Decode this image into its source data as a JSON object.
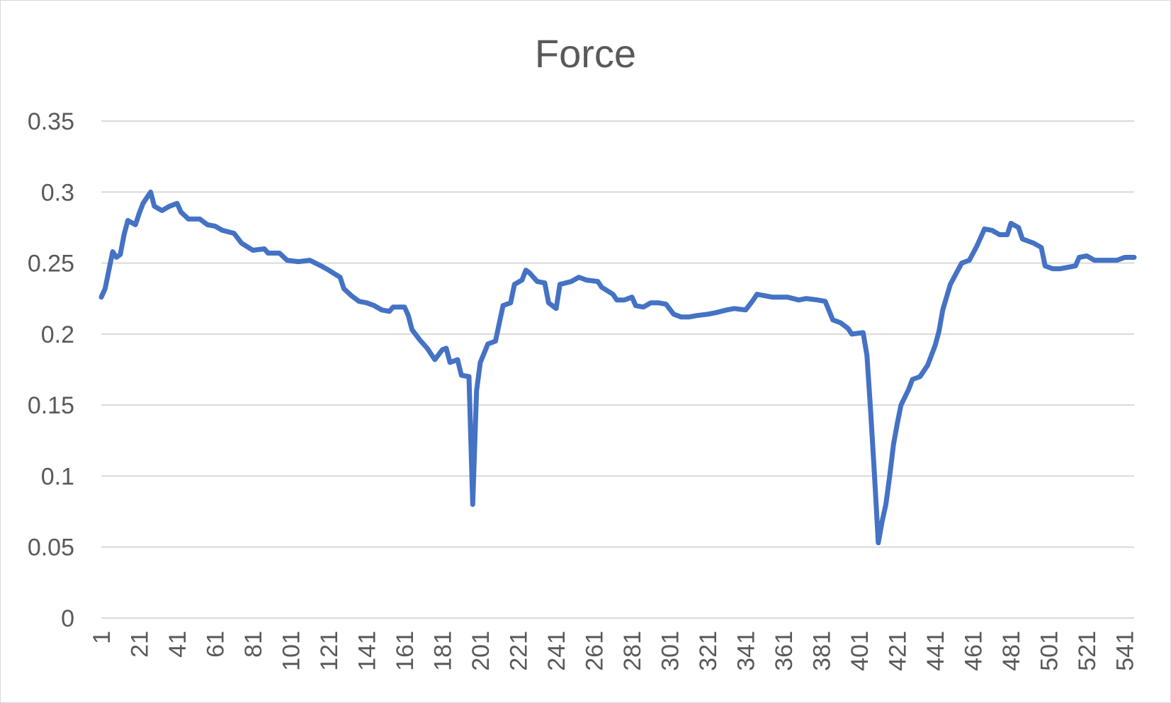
{
  "chart_data": {
    "type": "line",
    "title": "Force",
    "xlabel": "",
    "ylabel": "",
    "ylim": [
      0,
      0.35
    ],
    "yticks": [
      "0",
      "0.05",
      "0.1",
      "0.15",
      "0.2",
      "0.25",
      "0.3",
      "0.35"
    ],
    "xticks": [
      "1",
      "21",
      "41",
      "61",
      "81",
      "101",
      "121",
      "141",
      "161",
      "181",
      "201",
      "221",
      "241",
      "261",
      "281",
      "301",
      "321",
      "341",
      "361",
      "381",
      "401",
      "421",
      "441",
      "461",
      "481",
      "501",
      "521",
      "541"
    ],
    "grid": true,
    "legend": "none",
    "line_color": "#4472C4",
    "series": [
      {
        "points": [
          [
            1,
            0.226
          ],
          [
            3,
            0.232
          ],
          [
            5,
            0.245
          ],
          [
            7,
            0.258
          ],
          [
            9,
            0.254
          ],
          [
            11,
            0.256
          ],
          [
            13,
            0.27
          ],
          [
            15,
            0.28
          ],
          [
            19,
            0.277
          ],
          [
            21,
            0.285
          ],
          [
            23,
            0.292
          ],
          [
            25,
            0.296
          ],
          [
            27,
            0.3
          ],
          [
            29,
            0.29
          ],
          [
            33,
            0.287
          ],
          [
            37,
            0.29
          ],
          [
            41,
            0.292
          ],
          [
            43,
            0.286
          ],
          [
            47,
            0.281
          ],
          [
            53,
            0.281
          ],
          [
            57,
            0.277
          ],
          [
            61,
            0.276
          ],
          [
            65,
            0.273
          ],
          [
            71,
            0.271
          ],
          [
            75,
            0.264
          ],
          [
            81,
            0.259
          ],
          [
            87,
            0.26
          ],
          [
            89,
            0.257
          ],
          [
            95,
            0.257
          ],
          [
            99,
            0.252
          ],
          [
            105,
            0.251
          ],
          [
            111,
            0.252
          ],
          [
            117,
            0.248
          ],
          [
            121,
            0.245
          ],
          [
            127,
            0.24
          ],
          [
            129,
            0.232
          ],
          [
            133,
            0.227
          ],
          [
            137,
            0.223
          ],
          [
            141,
            0.222
          ],
          [
            145,
            0.22
          ],
          [
            149,
            0.217
          ],
          [
            153,
            0.216
          ],
          [
            155,
            0.219
          ],
          [
            161,
            0.219
          ],
          [
            163,
            0.213
          ],
          [
            165,
            0.203
          ],
          [
            169,
            0.196
          ],
          [
            173,
            0.19
          ],
          [
            177,
            0.182
          ],
          [
            181,
            0.189
          ],
          [
            183,
            0.19
          ],
          [
            185,
            0.18
          ],
          [
            189,
            0.182
          ],
          [
            191,
            0.171
          ],
          [
            195,
            0.17
          ],
          [
            197,
            0.08
          ],
          [
            199,
            0.16
          ],
          [
            201,
            0.18
          ],
          [
            205,
            0.193
          ],
          [
            209,
            0.195
          ],
          [
            213,
            0.22
          ],
          [
            217,
            0.222
          ],
          [
            219,
            0.235
          ],
          [
            223,
            0.238
          ],
          [
            225,
            0.245
          ],
          [
            227,
            0.243
          ],
          [
            231,
            0.237
          ],
          [
            235,
            0.236
          ],
          [
            237,
            0.222
          ],
          [
            241,
            0.218
          ],
          [
            243,
            0.235
          ],
          [
            249,
            0.237
          ],
          [
            253,
            0.24
          ],
          [
            257,
            0.238
          ],
          [
            263,
            0.237
          ],
          [
            265,
            0.233
          ],
          [
            271,
            0.228
          ],
          [
            273,
            0.224
          ],
          [
            277,
            0.224
          ],
          [
            281,
            0.226
          ],
          [
            283,
            0.22
          ],
          [
            287,
            0.219
          ],
          [
            291,
            0.222
          ],
          [
            295,
            0.222
          ],
          [
            299,
            0.221
          ],
          [
            303,
            0.214
          ],
          [
            307,
            0.212
          ],
          [
            311,
            0.212
          ],
          [
            315,
            0.213
          ],
          [
            321,
            0.214
          ],
          [
            325,
            0.215
          ],
          [
            331,
            0.217
          ],
          [
            335,
            0.218
          ],
          [
            341,
            0.217
          ],
          [
            345,
            0.224
          ],
          [
            347,
            0.228
          ],
          [
            351,
            0.227
          ],
          [
            355,
            0.226
          ],
          [
            363,
            0.226
          ],
          [
            369,
            0.224
          ],
          [
            373,
            0.225
          ],
          [
            379,
            0.224
          ],
          [
            383,
            0.223
          ],
          [
            387,
            0.21
          ],
          [
            391,
            0.208
          ],
          [
            395,
            0.204
          ],
          [
            397,
            0.2
          ],
          [
            403,
            0.201
          ],
          [
            405,
            0.185
          ],
          [
            407,
            0.145
          ],
          [
            409,
            0.1
          ],
          [
            411,
            0.053
          ],
          [
            413,
            0.068
          ],
          [
            415,
            0.08
          ],
          [
            417,
            0.1
          ],
          [
            419,
            0.122
          ],
          [
            421,
            0.137
          ],
          [
            423,
            0.15
          ],
          [
            427,
            0.161
          ],
          [
            429,
            0.168
          ],
          [
            433,
            0.17
          ],
          [
            437,
            0.178
          ],
          [
            441,
            0.192
          ],
          [
            443,
            0.202
          ],
          [
            445,
            0.217
          ],
          [
            449,
            0.235
          ],
          [
            453,
            0.245
          ],
          [
            455,
            0.25
          ],
          [
            459,
            0.252
          ],
          [
            463,
            0.262
          ],
          [
            467,
            0.274
          ],
          [
            471,
            0.273
          ],
          [
            475,
            0.27
          ],
          [
            479,
            0.27
          ],
          [
            481,
            0.278
          ],
          [
            485,
            0.275
          ],
          [
            487,
            0.267
          ],
          [
            493,
            0.264
          ],
          [
            497,
            0.261
          ],
          [
            499,
            0.248
          ],
          [
            503,
            0.246
          ],
          [
            507,
            0.246
          ],
          [
            515,
            0.248
          ],
          [
            517,
            0.254
          ],
          [
            521,
            0.255
          ],
          [
            525,
            0.252
          ],
          [
            537,
            0.252
          ],
          [
            541,
            0.254
          ],
          [
            546,
            0.254
          ]
        ]
      }
    ]
  }
}
